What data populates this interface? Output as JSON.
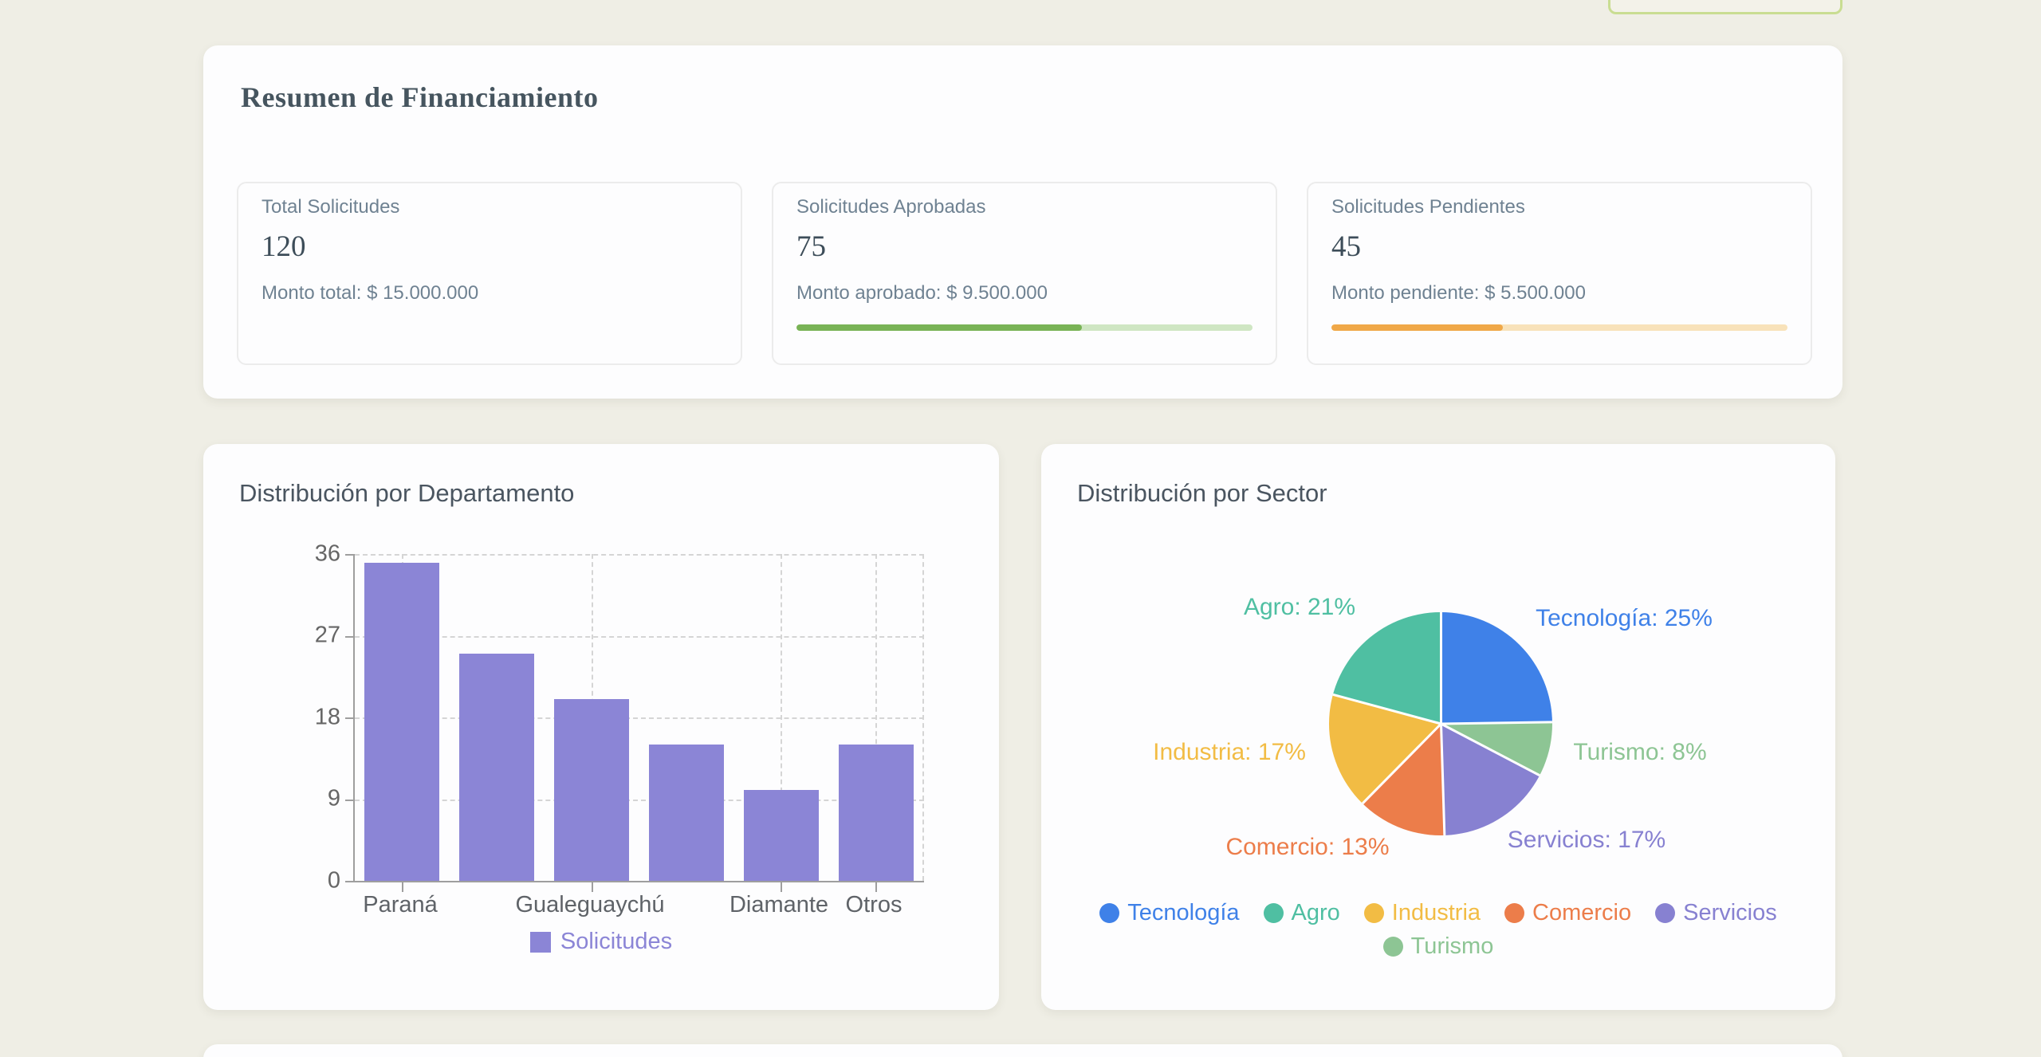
{
  "summary": {
    "title": "Resumen de Financiamiento",
    "cards": [
      {
        "label": "Total Solicitudes",
        "value": "120",
        "detail": "Monto total: $ 15.000.000",
        "progress": null
      },
      {
        "label": "Solicitudes Aprobadas",
        "value": "75",
        "detail": "Monto aprobado: $ 9.500.000",
        "progress": {
          "percent": 62.5,
          "fill_color": "#79b356",
          "track_color": "#cfe6c3"
        }
      },
      {
        "label": "Solicitudes Pendientes",
        "value": "45",
        "detail": "Monto pendiente: $ 5.500.000",
        "progress": {
          "percent": 37.5,
          "fill_color": "#f0a848",
          "track_color": "#f8e2ba"
        }
      }
    ]
  },
  "chart_data": [
    {
      "type": "bar",
      "title": "Distribución por Departamento",
      "values": [
        35,
        25,
        20,
        15,
        10,
        15
      ],
      "bar_color": "#8b85d6",
      "ylim": [
        0,
        36
      ],
      "yticks": [
        0,
        9,
        18,
        27,
        36
      ],
      "x_tick_labels": [
        {
          "label": "Paraná",
          "bar_index": 0
        },
        {
          "label": "Gualeguaychú",
          "bar_index": 2
        },
        {
          "label": "Diamante",
          "bar_index": 4
        },
        {
          "label": "Otros",
          "bar_index": 5
        }
      ],
      "grid": "dashed",
      "legend": {
        "label": "Solicitudes",
        "color": "#8b85d6",
        "position": "bottom"
      }
    },
    {
      "type": "pie",
      "title": "Distribución por Sector",
      "slices": [
        {
          "label": "Tecnología",
          "percent": 25,
          "color": "#3f81e8",
          "callout": "Tecnología: 25%"
        },
        {
          "label": "Agro",
          "percent": 21,
          "color": "#4fbfa2",
          "callout": "Agro: 21%"
        },
        {
          "label": "Industria",
          "percent": 17,
          "color": "#f2bc44",
          "callout": "Industria: 17%"
        },
        {
          "label": "Comercio",
          "percent": 13,
          "color": "#ec7d4a",
          "callout": "Comercio: 13%"
        },
        {
          "label": "Servicios",
          "percent": 17,
          "color": "#8781d1",
          "callout": "Servicios: 17%"
        },
        {
          "label": "Turismo",
          "percent": 8,
          "color": "#8dc594",
          "callout": "Turismo: 8%"
        }
      ],
      "clockwise_order_from_top": [
        "Tecnología",
        "Turismo",
        "Servicios",
        "Comercio",
        "Industria",
        "Agro"
      ],
      "legend_position": "bottom"
    }
  ],
  "colors": {
    "page_background": "#efeee5",
    "card_background": "#fdfdfe",
    "title_text": "#46555f",
    "muted_text": "#6f8292",
    "axis_text": "#666666",
    "top_button_border": "#c9dd92"
  }
}
